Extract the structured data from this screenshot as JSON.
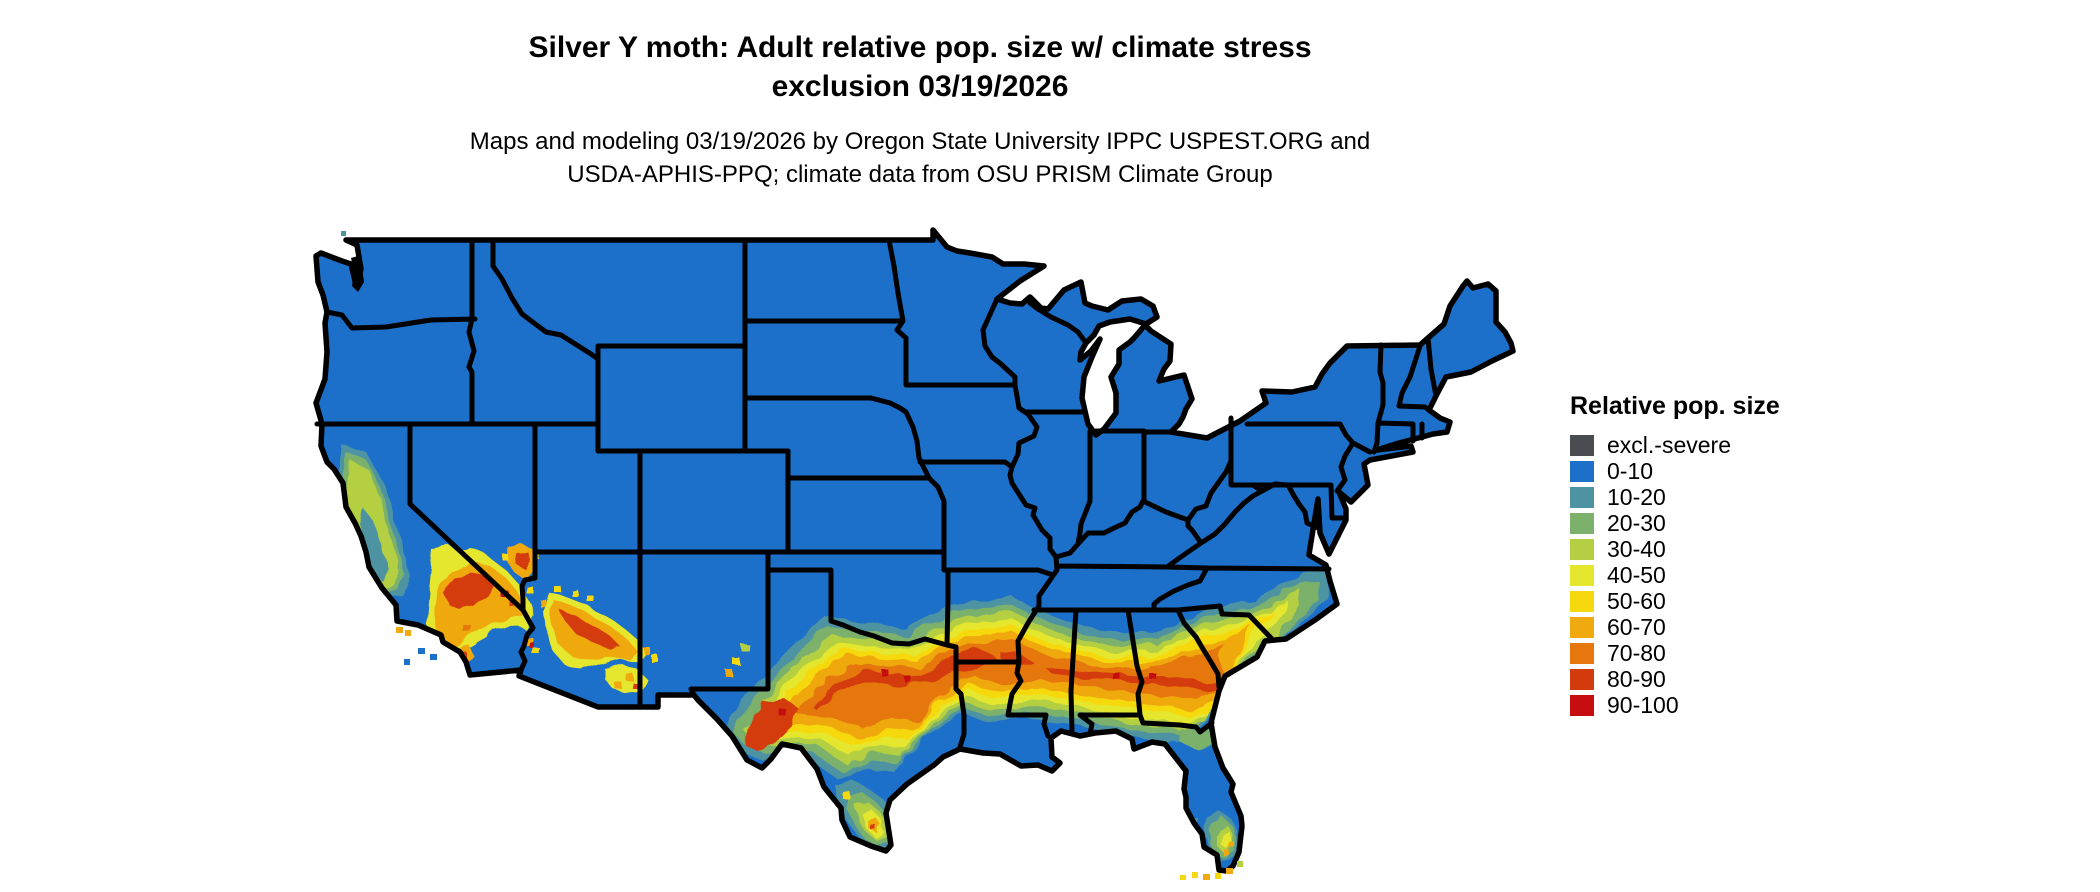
{
  "title": {
    "line1": "Silver Y moth: Adult relative pop. size w/ climate stress",
    "line2": "exclusion 03/19/2026"
  },
  "subtitle": {
    "line1": "Maps and modeling 03/19/2026 by Oregon State University IPPC USPEST.ORG and",
    "line2": "USDA-APHIS-PPQ; climate data from OSU PRISM Climate Group"
  },
  "legend": {
    "title": "Relative pop. size",
    "items": [
      {
        "label": "excl.-severe",
        "color": "#494c50"
      },
      {
        "label": "0-10",
        "color": "#1c70ca"
      },
      {
        "label": "10-20",
        "color": "#4e93a2"
      },
      {
        "label": "20-30",
        "color": "#7cb16c"
      },
      {
        "label": "30-40",
        "color": "#b4cf43"
      },
      {
        "label": "40-50",
        "color": "#e4e72d"
      },
      {
        "label": "50-60",
        "color": "#f6d90c"
      },
      {
        "label": "60-70",
        "color": "#f0a90e"
      },
      {
        "label": "70-80",
        "color": "#e5770d"
      },
      {
        "label": "80-90",
        "color": "#d43b0c"
      },
      {
        "label": "90-100",
        "color": "#c60d10"
      }
    ]
  },
  "map": {
    "region": "Contiguous United States with state borders",
    "base_value_class": "0-10",
    "high_value_areas": "California valley and coast, southern California, central Arizona, west and north-central Texas, southern band through Louisiana-Mississippi-Alabama-Georgia to coastal South Carolina, south Texas tip, south Florida"
  }
}
